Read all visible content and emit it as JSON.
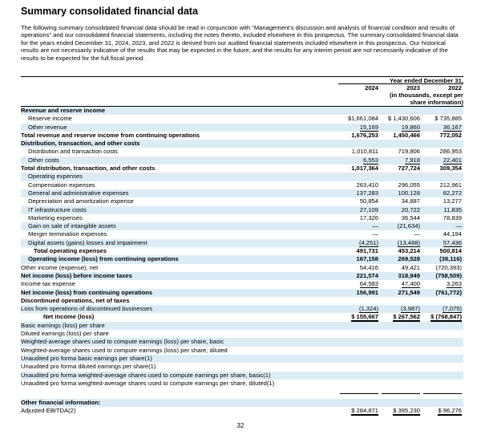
{
  "header": {
    "title": "Summary consolidated financial data",
    "intro": "The following summary consolidated financial data should be read in conjunction with “Management’s discussion and analysis of financial condition and results of operations” and our consolidated financial statements, including the notes thereto, included elsewhere in this prospectus. The summary consolidated financial data for the years ended December 31, 2024, 2023, and 2022 is derived from our audited financial statements included elsewhere in this prospectus. Our historical results are not necessarily indicative of the results that may be expected in the future, and the results for any interim period are not necessarily indicative of the results to be expected for the full fiscal period."
  },
  "table": {
    "period": "Year ended December 31,",
    "years": [
      "2024",
      "2023",
      "2022"
    ],
    "units": "(in thousands, except per share information)",
    "rows": [
      [
        "Revenue and reserve income"
      ],
      [
        "Reserve income",
        "$1,661,084",
        "$ 1,430,606",
        "$ 735,885"
      ],
      [
        "Other revenue",
        "15,169",
        "19,860",
        "36,167"
      ],
      [
        "Total revenue and reserve income from continuing operations",
        "1,676,253",
        "1,450,466",
        "772,052"
      ],
      [
        "Distribution, transaction, and other costs"
      ],
      [
        "Distribution and transaction costs",
        "1,010,811",
        "719,806",
        "286,953"
      ],
      [
        "Other costs",
        "6,553",
        "7,918",
        "22,401"
      ],
      [
        "Total distribution, transaction, and other costs",
        "1,017,364",
        "727,724",
        "309,354"
      ],
      [
        "Operating expenses"
      ],
      [
        "Compensation expenses",
        "263,410",
        "296,055",
        "212,961"
      ],
      [
        "General and administrative expenses",
        "137,283",
        "100,128",
        "82,272"
      ],
      [
        "Depreciation and amortization expense",
        "50,854",
        "34,887",
        "13,277"
      ],
      [
        "IT infrastructure costs",
        "27,109",
        "20,722",
        "11,835"
      ],
      [
        "Marketing expenses",
        "17,326",
        "36,544",
        "78,839"
      ],
      [
        "Gain on sale of intangible assets",
        "—",
        "(21,634)",
        "—"
      ],
      [
        "Merger termination expenses",
        "—",
        "—",
        "44,194"
      ],
      [
        "Digital assets (gains) losses and impairment",
        "(4,251)",
        "(13,488)",
        "57,436"
      ],
      [
        "Total operating expenses",
        "491,731",
        "453,214",
        "500,814"
      ],
      [
        "Operating income (loss) from continuing operations",
        "167,158",
        "269,528",
        "(38,116)"
      ],
      [
        "Other income (expense), net",
        "54,416",
        "49,421",
        "(720,393)"
      ],
      [
        "Net income (loss) before income taxes",
        "221,574",
        "318,949",
        "(758,509)"
      ],
      [
        "Income tax expense",
        "64,583",
        "47,400",
        "3,263"
      ],
      [
        "Net income (loss) from continuing operations",
        "156,991",
        "271,549",
        "(761,772)"
      ],
      [
        "Discontinued operations, net of taxes"
      ],
      [
        "Loss from operations of discontinued businesses",
        "(1,324)",
        "(3,987)",
        "(7,075)"
      ],
      [
        "Net income (loss)",
        "$ 155,667",
        "$ 267,562",
        "$ (768,847)"
      ],
      [
        "Basic earnings (loss) per share"
      ],
      [
        "Diluted earnings (loss) per share"
      ],
      [
        "Weighted-average shares used to compute earnings (loss) per share, basic"
      ],
      [
        "Weighted-average shares used to compute earnings (loss) per share, diluted"
      ],
      [
        "Unaudited pro forma basic earnings per share(1)"
      ],
      [
        "Unaudited pro forma diluted earnings per share(1)"
      ],
      [
        "Unaudited pro forma weighted-average shares used to compute earnings per share, basic(1)"
      ],
      [
        "Unaudited pro forma weighted-average shares used to compute earnings per share, diluted(1)"
      ],
      [
        "Other financial information:"
      ],
      [
        "Adjusted EBITDA(2)",
        "$ 284,871",
        "$ 395,230",
        "$ 96,276"
      ]
    ]
  },
  "footer": {
    "page_number": "32"
  }
}
